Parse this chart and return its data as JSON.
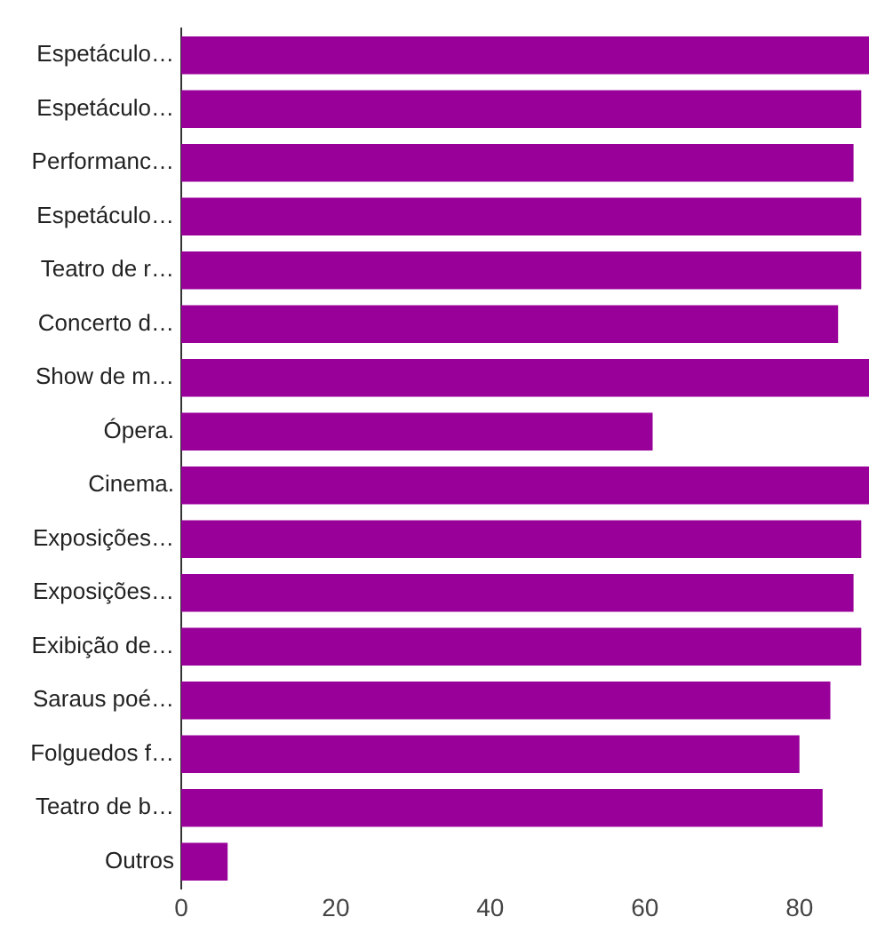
{
  "chart_data": {
    "type": "bar",
    "orientation": "horizontal",
    "categories": [
      "Espetáculo…",
      "Espetáculo…",
      "Performanc…",
      "Espetáculo…",
      "Teatro de r…",
      "Concerto d…",
      "Show de m…",
      "Ópera.",
      "Cinema.",
      "Exposições…",
      "Exposições…",
      "Exibição de…",
      "Saraus poé…",
      "Folguedos f…",
      "Teatro de b…",
      "Outros"
    ],
    "values": [
      89,
      88,
      87,
      88,
      88,
      85,
      89,
      61,
      89,
      88,
      87,
      88,
      84,
      80,
      83,
      6
    ],
    "color": "#990099",
    "xlim": [
      0,
      89
    ],
    "xticks": [
      0,
      20,
      40,
      60,
      80
    ],
    "grid": false,
    "legend": false
  }
}
